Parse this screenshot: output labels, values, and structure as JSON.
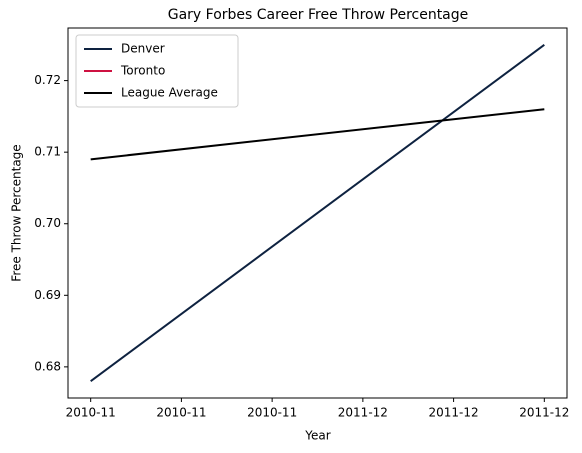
{
  "chart_data": {
    "type": "line",
    "title": "Gary Forbes Career Free Throw Percentage",
    "xlabel": "Year",
    "ylabel": "Free Throw Percentage",
    "x": [
      0,
      1
    ],
    "series": [
      {
        "name": "Denver",
        "color": "#0e2240",
        "values": [
          0.678,
          0.725
        ]
      },
      {
        "name": "Toronto",
        "color": "#ce1141",
        "values": [
          null,
          null
        ]
      },
      {
        "name": "League Average",
        "color": "#000000",
        "values": [
          0.709,
          0.716
        ]
      }
    ],
    "xlim": [
      -0.05,
      1.05
    ],
    "xticks": [
      {
        "value": 0,
        "label": "2010-11"
      },
      {
        "value": 0.2,
        "label": "2010-11"
      },
      {
        "value": 0.4,
        "label": "2010-11"
      },
      {
        "value": 0.6,
        "label": "2011-12"
      },
      {
        "value": 0.8,
        "label": "2011-12"
      },
      {
        "value": 1.0,
        "label": "2011-12"
      }
    ],
    "ylim": [
      0.67565,
      0.72735
    ],
    "yticks": [
      {
        "value": 0.68,
        "label": "0.68"
      },
      {
        "value": 0.69,
        "label": "0.69"
      },
      {
        "value": 0.7,
        "label": "0.70"
      },
      {
        "value": 0.71,
        "label": "0.71"
      },
      {
        "value": 0.72,
        "label": "0.72"
      }
    ],
    "legend": "upper left",
    "grid": false
  }
}
